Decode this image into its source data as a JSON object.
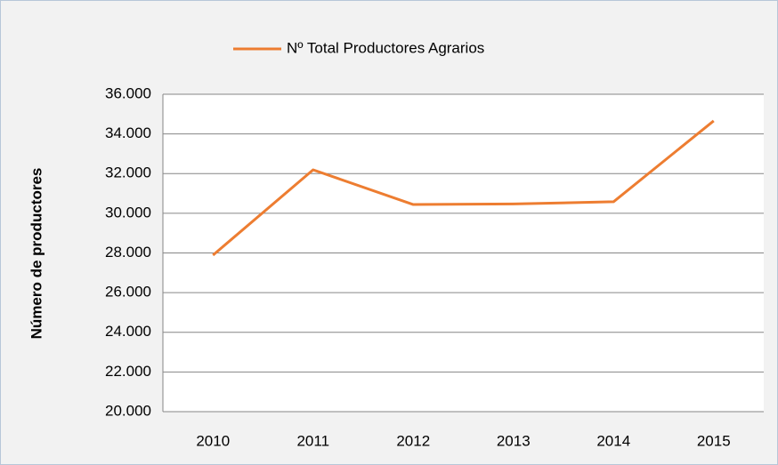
{
  "chart_data": {
    "type": "line",
    "y_axis_label": "Número de productores",
    "categories": [
      "2010",
      "2011",
      "2012",
      "2013",
      "2014",
      "2015"
    ],
    "series": [
      {
        "name": "Nº Total Productores Agrarios",
        "color": "#ed7d31",
        "values": [
          27890,
          32190,
          30440,
          30470,
          30580,
          34660
        ]
      }
    ],
    "ylim": [
      20000,
      36000
    ],
    "yticks": [
      {
        "value": 20000,
        "label": "20.000"
      },
      {
        "value": 22000,
        "label": "22.000"
      },
      {
        "value": 24000,
        "label": "24.000"
      },
      {
        "value": 26000,
        "label": "26.000"
      },
      {
        "value": 28000,
        "label": "28.000"
      },
      {
        "value": 30000,
        "label": "30.000"
      },
      {
        "value": 32000,
        "label": "32.000"
      },
      {
        "value": 34000,
        "label": "34.000"
      },
      {
        "value": 36000,
        "label": "36.000"
      }
    ],
    "grid": true,
    "legend": "top"
  }
}
